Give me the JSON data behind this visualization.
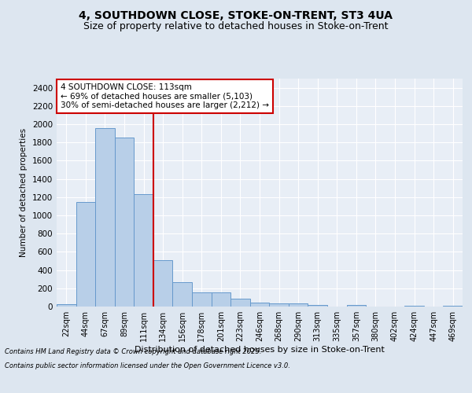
{
  "title1": "4, SOUTHDOWN CLOSE, STOKE-ON-TRENT, ST3 4UA",
  "title2": "Size of property relative to detached houses in Stoke-on-Trent",
  "xlabel": "Distribution of detached houses by size in Stoke-on-Trent",
  "ylabel": "Number of detached properties",
  "bar_labels": [
    "22sqm",
    "44sqm",
    "67sqm",
    "89sqm",
    "111sqm",
    "134sqm",
    "156sqm",
    "178sqm",
    "201sqm",
    "223sqm",
    "246sqm",
    "268sqm",
    "290sqm",
    "313sqm",
    "335sqm",
    "357sqm",
    "380sqm",
    "402sqm",
    "424sqm",
    "447sqm",
    "469sqm"
  ],
  "bar_values": [
    25,
    1150,
    1960,
    1850,
    1230,
    510,
    270,
    155,
    155,
    85,
    45,
    35,
    35,
    15,
    0,
    15,
    0,
    0,
    10,
    0,
    10
  ],
  "bar_color": "#b8cfe8",
  "bar_edgecolor": "#6699cc",
  "vline_index": 4,
  "annotation_text": "4 SOUTHDOWN CLOSE: 113sqm\n← 69% of detached houses are smaller (5,103)\n30% of semi-detached houses are larger (2,212) →",
  "annotation_box_color": "#ffffff",
  "annotation_box_edgecolor": "#cc0000",
  "vline_color": "#cc0000",
  "ylim": [
    0,
    2500
  ],
  "yticks": [
    0,
    200,
    400,
    600,
    800,
    1000,
    1200,
    1400,
    1600,
    1800,
    2000,
    2200,
    2400
  ],
  "footer1": "Contains HM Land Registry data © Crown copyright and database right 2025.",
  "footer2": "Contains public sector information licensed under the Open Government Licence v3.0.",
  "bg_color": "#dde6f0",
  "plot_bg_color": "#e8eef6",
  "grid_color": "#ffffff",
  "title_fontsize": 10,
  "subtitle_fontsize": 9,
  "footer_fontsize": 6
}
